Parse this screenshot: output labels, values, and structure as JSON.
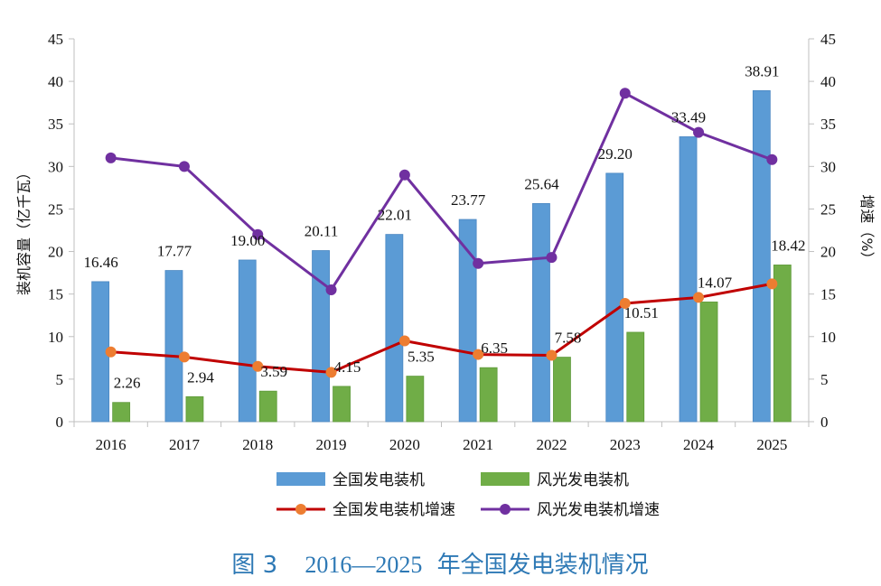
{
  "caption": {
    "figure": "图 3",
    "years": "2016—2025",
    "text": "年全国发电装机情况"
  },
  "chart_data": {
    "type": "bar",
    "categories": [
      "2016",
      "2017",
      "2018",
      "2019",
      "2020",
      "2021",
      "2022",
      "2023",
      "2024",
      "2025"
    ],
    "series": [
      {
        "name": "全国发电装机",
        "kind": "bar",
        "axis": "left",
        "color": "#5b9bd5",
        "values": [
          16.46,
          17.77,
          19.0,
          20.11,
          22.01,
          23.77,
          25.64,
          29.2,
          33.49,
          38.91
        ],
        "labels": [
          "16.46",
          "17.77",
          "19.00",
          "20.11",
          "22.01",
          "23.77",
          "25.64",
          "29.20",
          "33.49",
          "38.91"
        ]
      },
      {
        "name": "风光发电装机",
        "kind": "bar",
        "axis": "left",
        "color": "#70ad47",
        "values": [
          2.26,
          2.94,
          3.59,
          4.15,
          5.35,
          6.35,
          7.58,
          10.51,
          14.07,
          18.42
        ],
        "labels": [
          "2.26",
          "2.94",
          "3.59",
          "4.15",
          "5.35",
          "6.35",
          "7.58",
          "10.51",
          "14.07",
          "18.42"
        ]
      },
      {
        "name": "全国发电装机增速",
        "kind": "line",
        "axis": "right",
        "color": "#c00000",
        "marker_color": "#ed7d31",
        "values": [
          8.2,
          7.6,
          6.5,
          5.8,
          9.5,
          7.9,
          7.8,
          13.9,
          14.6,
          16.2
        ]
      },
      {
        "name": "风光发电装机增速",
        "kind": "line",
        "axis": "right",
        "color": "#7030a0",
        "marker_color": "#7030a0",
        "values": [
          31,
          30,
          22,
          15.5,
          29,
          18.6,
          19.3,
          38.6,
          34,
          30.8
        ]
      }
    ],
    "ylabel": "装机容量（亿千瓦）",
    "y2label": "增速（%）",
    "ylim": [
      0,
      45
    ],
    "y2lim": [
      0,
      45
    ],
    "yticks": [
      "0",
      "5",
      "10",
      "15",
      "20",
      "25",
      "30",
      "35",
      "40",
      "45"
    ],
    "y2ticks": [
      "0",
      "5",
      "10",
      "15",
      "20",
      "25",
      "30",
      "35",
      "40",
      "45"
    ],
    "grid": false,
    "legend_position": "bottom"
  }
}
